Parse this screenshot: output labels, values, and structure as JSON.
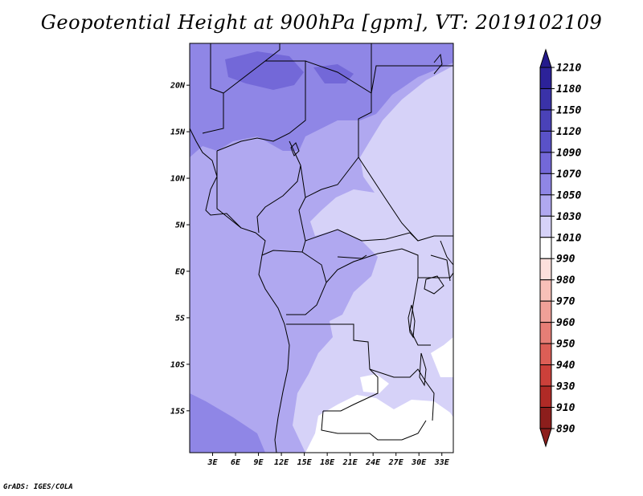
{
  "title": "Geopotential Height at 900hPa [gpm], VT: 2019102109",
  "footer": "GrADS: IGES/COLA",
  "map": {
    "lon_ticks": [
      "3E",
      "6E",
      "9E",
      "12E",
      "15E",
      "18E",
      "21E",
      "24E",
      "27E",
      "30E",
      "33E"
    ],
    "lat_ticks": [
      "20N",
      "15N",
      "10N",
      "5N",
      "EQ",
      "5S",
      "10S",
      "15S"
    ],
    "lon_range": [
      0,
      34.5
    ],
    "lat_range": [
      -19.5,
      24.5
    ]
  },
  "colorbar": {
    "levels": [
      "1210",
      "1180",
      "1150",
      "1120",
      "1090",
      "1070",
      "1050",
      "1030",
      "1010",
      "990",
      "980",
      "970",
      "960",
      "950",
      "940",
      "930",
      "910",
      "890"
    ],
    "colors": [
      "#241a8c",
      "#2c2299",
      "#3a32a8",
      "#4a42b8",
      "#5a52c8",
      "#7368d8",
      "#8f86e6",
      "#b0a8f0",
      "#d6d2f8",
      "#ffffff",
      "#fde0dc",
      "#f8c0b8",
      "#f0a098",
      "#e67e76",
      "#dc5e56",
      "#cc403a",
      "#b02a26",
      "#8c1e1c"
    ]
  },
  "chart_data": {
    "type": "heatmap",
    "title": "Geopotential Height at 900hPa [gpm], VT: 2019102109",
    "variable_unit": "gpm",
    "valid_time": "2019102109",
    "x_ticks": [
      "3E",
      "6E",
      "9E",
      "12E",
      "15E",
      "18E",
      "21E",
      "24E",
      "27E",
      "30E",
      "33E"
    ],
    "y_ticks": [
      "20N",
      "15N",
      "10N",
      "5N",
      "EQ",
      "5S",
      "10S",
      "15S"
    ],
    "color_levels": [
      890,
      910,
      930,
      940,
      950,
      960,
      970,
      980,
      990,
      1010,
      1030,
      1050,
      1070,
      1090,
      1120,
      1150,
      1180,
      1210
    ],
    "field_description_ranges": {
      "northern_sahara_max": "1070-1090",
      "west_africa_and_atlantic": "1050-1070",
      "central_africa": "1030-1050",
      "east_africa_and_southeast": "1010-1030",
      "southern_africa_min": "990-1010"
    }
  }
}
